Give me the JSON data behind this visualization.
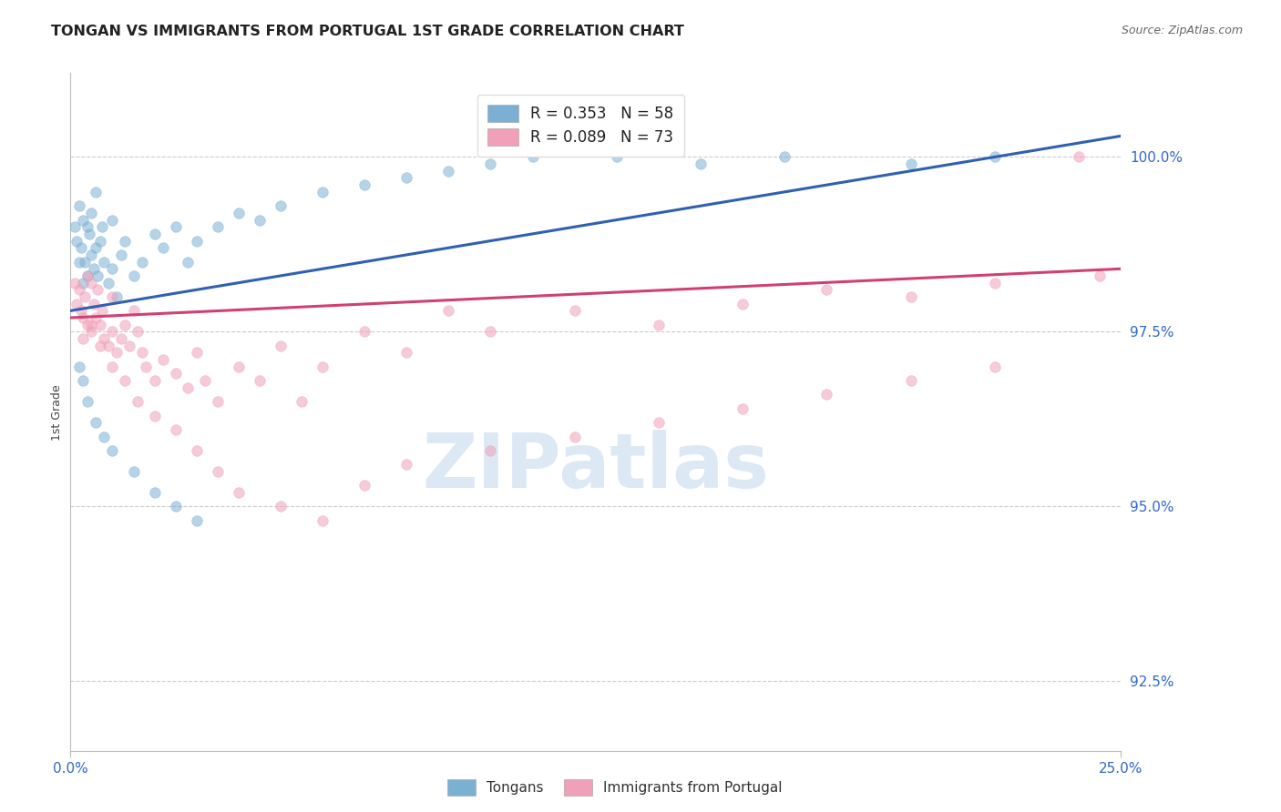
{
  "title": "TONGAN VS IMMIGRANTS FROM PORTUGAL 1ST GRADE CORRELATION CHART",
  "source": "Source: ZipAtlas.com",
  "ylabel": "1st Grade",
  "ylabel_values": [
    92.5,
    95.0,
    97.5,
    100.0
  ],
  "xmin": 0.0,
  "xmax": 25.0,
  "ymin": 91.5,
  "ymax": 101.2,
  "legend1_label": "R = 0.353   N = 58",
  "legend2_label": "R = 0.089   N = 73",
  "legend1_color": "#7bafd4",
  "legend2_color": "#f0a0b8",
  "trendline1_color": "#3060b0",
  "trendline2_color": "#d04070",
  "background_color": "#ffffff",
  "grid_color": "#cccccc",
  "axis_color": "#bbbbbb",
  "title_color": "#222222",
  "source_color": "#666666",
  "tick_label_color": "#3366cc",
  "watermark_color": "#dde8f5",
  "scatter_alpha": 0.55,
  "scatter_size": 70,
  "tongan_x": [
    0.1,
    0.15,
    0.2,
    0.2,
    0.25,
    0.3,
    0.3,
    0.35,
    0.4,
    0.4,
    0.45,
    0.5,
    0.5,
    0.55,
    0.6,
    0.6,
    0.65,
    0.7,
    0.75,
    0.8,
    0.9,
    1.0,
    1.0,
    1.1,
    1.2,
    1.3,
    1.5,
    1.7,
    2.0,
    2.2,
    2.5,
    2.8,
    3.0,
    3.5,
    4.0,
    4.5,
    5.0,
    6.0,
    7.0,
    8.0,
    9.0,
    10.0,
    11.0,
    13.0,
    15.0,
    17.0,
    20.0,
    22.0,
    0.2,
    0.3,
    0.4,
    0.6,
    0.8,
    1.0,
    1.5,
    2.0,
    2.5,
    3.0
  ],
  "tongan_y": [
    99.0,
    98.8,
    99.3,
    98.5,
    98.7,
    99.1,
    98.2,
    98.5,
    99.0,
    98.3,
    98.9,
    98.6,
    99.2,
    98.4,
    98.7,
    99.5,
    98.3,
    98.8,
    99.0,
    98.5,
    98.2,
    98.4,
    99.1,
    98.0,
    98.6,
    98.8,
    98.3,
    98.5,
    98.9,
    98.7,
    99.0,
    98.5,
    98.8,
    99.0,
    99.2,
    99.1,
    99.3,
    99.5,
    99.6,
    99.7,
    99.8,
    99.9,
    100.0,
    100.0,
    99.9,
    100.0,
    99.9,
    100.0,
    97.0,
    96.8,
    96.5,
    96.2,
    96.0,
    95.8,
    95.5,
    95.2,
    95.0,
    94.8
  ],
  "portugal_x": [
    0.1,
    0.15,
    0.2,
    0.25,
    0.3,
    0.35,
    0.4,
    0.4,
    0.5,
    0.5,
    0.55,
    0.6,
    0.65,
    0.7,
    0.75,
    0.8,
    0.9,
    1.0,
    1.0,
    1.1,
    1.2,
    1.3,
    1.4,
    1.5,
    1.6,
    1.7,
    1.8,
    2.0,
    2.2,
    2.5,
    2.8,
    3.0,
    3.2,
    3.5,
    4.0,
    4.5,
    5.0,
    5.5,
    6.0,
    7.0,
    8.0,
    9.0,
    10.0,
    12.0,
    14.0,
    16.0,
    18.0,
    20.0,
    22.0,
    24.0,
    0.3,
    0.5,
    0.7,
    1.0,
    1.3,
    1.6,
    2.0,
    2.5,
    3.0,
    3.5,
    4.0,
    5.0,
    6.0,
    7.0,
    8.0,
    10.0,
    12.0,
    14.0,
    16.0,
    18.0,
    20.0,
    22.0,
    24.5
  ],
  "portugal_y": [
    98.2,
    97.9,
    98.1,
    97.8,
    97.7,
    98.0,
    97.6,
    98.3,
    97.5,
    98.2,
    97.9,
    97.7,
    98.1,
    97.6,
    97.8,
    97.4,
    97.3,
    97.5,
    98.0,
    97.2,
    97.4,
    97.6,
    97.3,
    97.8,
    97.5,
    97.2,
    97.0,
    96.8,
    97.1,
    96.9,
    96.7,
    97.2,
    96.8,
    96.5,
    97.0,
    96.8,
    97.3,
    96.5,
    97.0,
    97.5,
    97.2,
    97.8,
    97.5,
    97.8,
    97.6,
    97.9,
    98.1,
    98.0,
    98.2,
    100.0,
    97.4,
    97.6,
    97.3,
    97.0,
    96.8,
    96.5,
    96.3,
    96.1,
    95.8,
    95.5,
    95.2,
    95.0,
    94.8,
    95.3,
    95.6,
    95.8,
    96.0,
    96.2,
    96.4,
    96.6,
    96.8,
    97.0,
    98.3
  ],
  "trendline1_x0": 0.0,
  "trendline1_y0": 97.8,
  "trendline1_x1": 25.0,
  "trendline1_y1": 100.3,
  "trendline2_x0": 0.0,
  "trendline2_y0": 97.7,
  "trendline2_x1": 25.0,
  "trendline2_y1": 98.4
}
